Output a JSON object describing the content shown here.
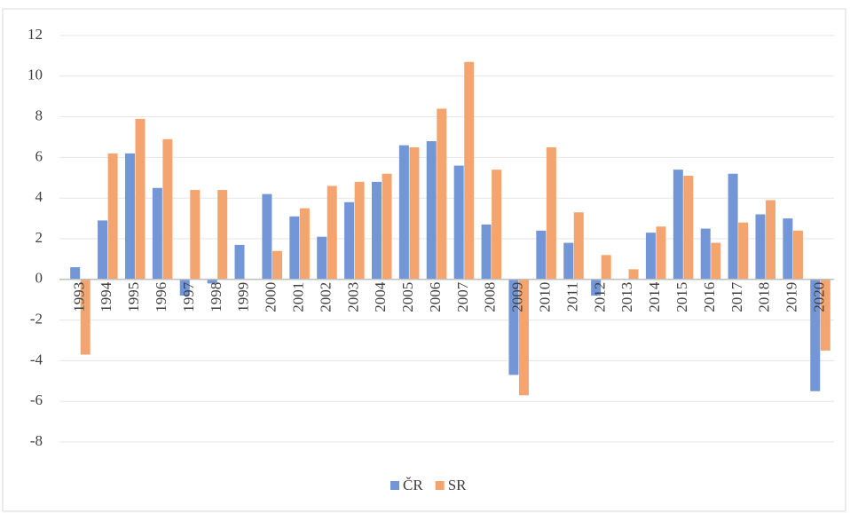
{
  "chart_data": {
    "type": "bar",
    "categories": [
      "1993",
      "1994",
      "1995",
      "1996",
      "1997",
      "1998",
      "1999",
      "2000",
      "2001",
      "2002",
      "2003",
      "2004",
      "2005",
      "2006",
      "2007",
      "2008",
      "2009",
      "2010",
      "2011",
      "2012",
      "2013",
      "2014",
      "2015",
      "2016",
      "2017",
      "2018",
      "2019",
      "2020"
    ],
    "series": [
      {
        "name": "ČR",
        "color": "#7396d6",
        "values": [
          0.6,
          2.9,
          6.2,
          4.5,
          -0.8,
          -0.2,
          1.7,
          4.2,
          3.1,
          2.1,
          3.8,
          4.8,
          6.6,
          6.8,
          5.6,
          2.7,
          -4.7,
          2.4,
          1.8,
          -0.8,
          0,
          2.3,
          5.4,
          2.5,
          5.2,
          3.2,
          3.0,
          -5.5
        ]
      },
      {
        "name": "SR",
        "color": "#f4a56f",
        "values": [
          -3.7,
          6.2,
          7.9,
          6.9,
          4.4,
          4.4,
          0,
          1.4,
          3.5,
          4.6,
          4.8,
          5.2,
          6.5,
          8.4,
          10.7,
          5.4,
          -5.7,
          6.5,
          3.3,
          1.2,
          0.5,
          2.6,
          5.1,
          1.8,
          2.8,
          3.9,
          2.4,
          -3.5
        ]
      }
    ],
    "ylim": [
      -8,
      12
    ],
    "yticks": [
      -8,
      -6,
      -4,
      -2,
      0,
      2,
      4,
      6,
      8,
      10,
      12
    ],
    "grid": true,
    "legend": "bottom"
  }
}
